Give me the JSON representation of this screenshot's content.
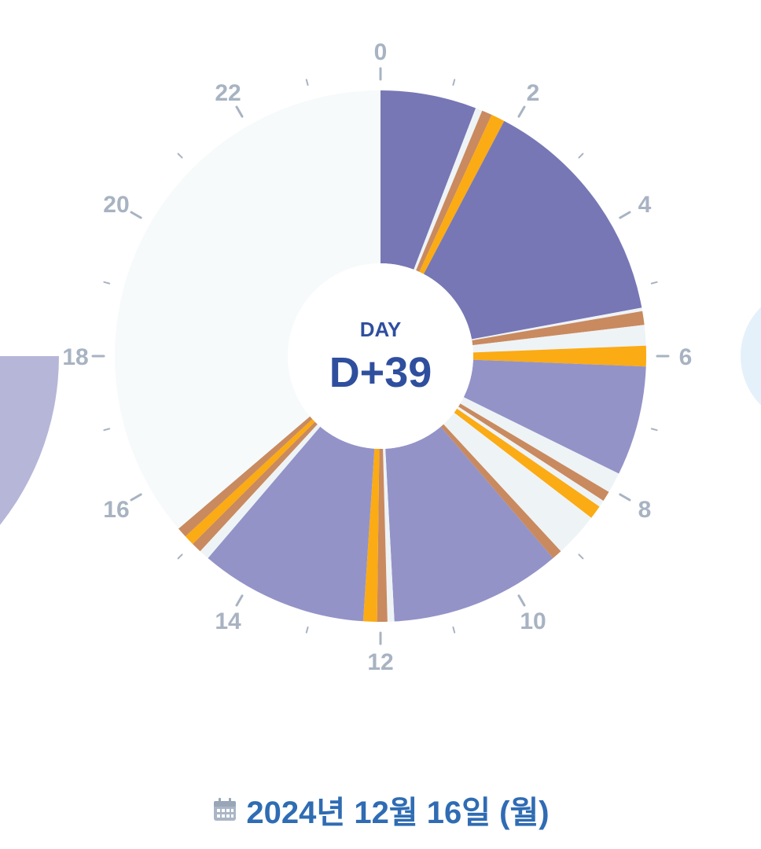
{
  "clock": {
    "center_label": "DAY",
    "center_value": "D+39",
    "hour_labels": [
      "0",
      "2",
      "4",
      "6",
      "8",
      "10",
      "12",
      "14",
      "16",
      "18",
      "20",
      "22"
    ]
  },
  "colors": {
    "sleep": "#7777b6",
    "sleep_light": "#9393c8",
    "feed": "#fbab14",
    "diaper": "#c98a5f",
    "awake": "#eef3f6",
    "empty": "#f6fafb",
    "accent": "#2f4f9e",
    "date": "#2f6cb3",
    "tick": "#a8b3c2"
  },
  "segments": [
    {
      "type": "sleep",
      "start": 0.0,
      "end": 1.4
    },
    {
      "type": "awake",
      "start": 1.4,
      "end": 1.5
    },
    {
      "type": "diaper",
      "start": 1.5,
      "end": 1.65
    },
    {
      "type": "feed",
      "start": 1.65,
      "end": 1.85
    },
    {
      "type": "sleep",
      "start": 1.85,
      "end": 5.3
    },
    {
      "type": "awake",
      "start": 5.3,
      "end": 5.35
    },
    {
      "type": "diaper",
      "start": 5.35,
      "end": 5.55
    },
    {
      "type": "awake",
      "start": 5.55,
      "end": 5.85
    },
    {
      "type": "feed",
      "start": 5.85,
      "end": 6.15
    },
    {
      "type": "sleep_light",
      "start": 6.15,
      "end": 7.75
    },
    {
      "type": "awake",
      "start": 7.75,
      "end": 8.05
    },
    {
      "type": "diaper",
      "start": 8.05,
      "end": 8.2
    },
    {
      "type": "awake",
      "start": 8.2,
      "end": 8.3
    },
    {
      "type": "feed",
      "start": 8.3,
      "end": 8.5
    },
    {
      "type": "awake",
      "start": 8.5,
      "end": 9.15
    },
    {
      "type": "diaper",
      "start": 9.15,
      "end": 9.3
    },
    {
      "type": "sleep_light",
      "start": 9.3,
      "end": 11.8
    },
    {
      "type": "awake",
      "start": 11.8,
      "end": 11.9
    },
    {
      "type": "diaper",
      "start": 11.9,
      "end": 12.05
    },
    {
      "type": "feed",
      "start": 12.05,
      "end": 12.25
    },
    {
      "type": "sleep_light",
      "start": 12.25,
      "end": 14.7
    },
    {
      "type": "awake",
      "start": 14.7,
      "end": 14.85
    },
    {
      "type": "diaper",
      "start": 14.85,
      "end": 15.0
    },
    {
      "type": "feed",
      "start": 15.0,
      "end": 15.15
    },
    {
      "type": "diaper",
      "start": 15.15,
      "end": 15.3
    },
    {
      "type": "empty",
      "start": 15.3,
      "end": 24.0
    }
  ],
  "date": {
    "text": "2024년 12월 16일 (월)",
    "icon": "calendar-icon"
  }
}
